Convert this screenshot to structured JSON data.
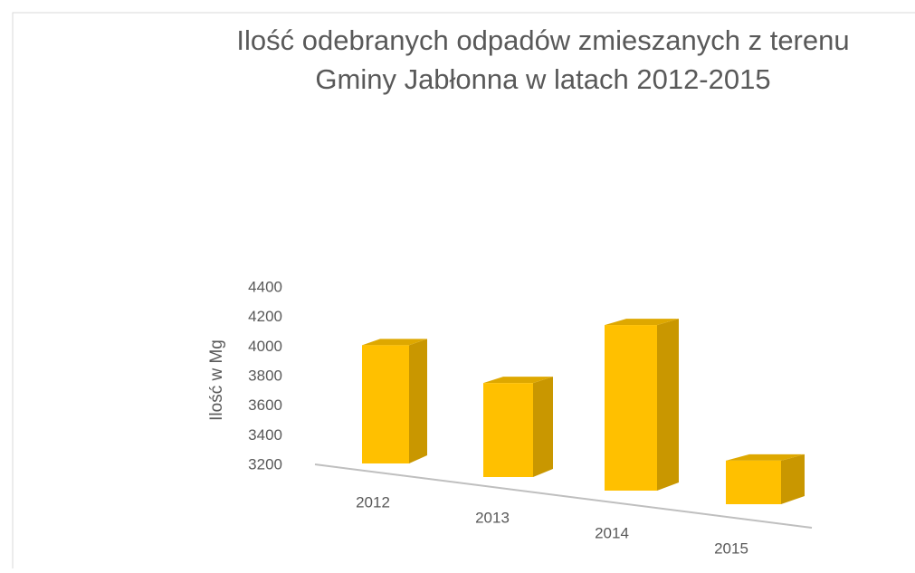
{
  "chart_data": {
    "type": "bar3d",
    "title": "Ilość odebranych odpadów zmieszanych z terenu",
    "subtitle": "Gminy Jabłonna w latach 2012-2015",
    "y_label": "Ilość w Mg",
    "categories": [
      "2012",
      "2013",
      "2014",
      "2015"
    ],
    "values": [
      4000,
      3800,
      4200,
      3450
    ],
    "color": "#ffc000",
    "ylim": [
      3200,
      4400
    ],
    "yticks": [
      3200,
      3400,
      3600,
      3800,
      4000,
      4200,
      4400
    ]
  }
}
